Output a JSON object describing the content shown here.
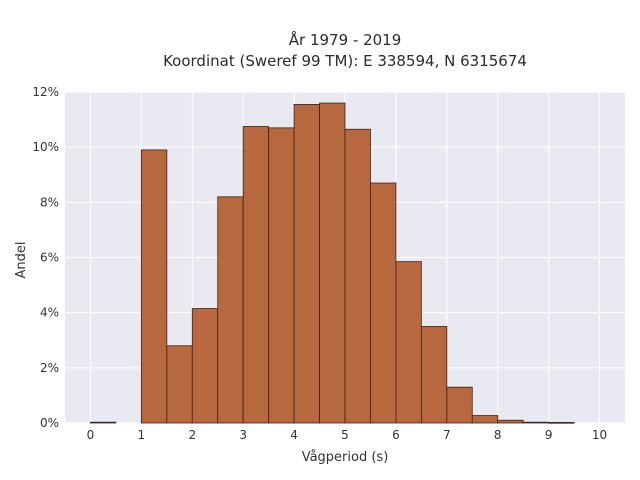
{
  "chart_data": {
    "type": "bar",
    "title_line1": "År 1979 - 2019",
    "title_line2": "Koordinat (Sweref 99 TM): E 338594, N 6315674",
    "xlabel": "Vågperiod (s)",
    "ylabel": "Andel",
    "xlim": [
      -0.5,
      10.5
    ],
    "ylim": [
      0,
      12
    ],
    "x_ticks": [
      0,
      1,
      2,
      3,
      4,
      5,
      6,
      7,
      8,
      9,
      10
    ],
    "y_ticks": [
      0,
      2,
      4,
      6,
      8,
      10,
      12
    ],
    "y_tick_labels": [
      "0%",
      "2%",
      "4%",
      "6%",
      "8%",
      "10%",
      "12%"
    ],
    "bin_width": 0.5,
    "bin_starts": [
      0,
      0.5,
      1,
      1.5,
      2,
      2.5,
      3,
      3.5,
      4,
      4.5,
      5,
      5.5,
      6,
      6.5,
      7,
      7.5,
      8,
      8.5,
      9,
      9.5
    ],
    "values": [
      0.03,
      0,
      9.9,
      2.8,
      4.15,
      8.2,
      10.75,
      10.7,
      11.55,
      11.6,
      10.65,
      8.7,
      5.85,
      3.5,
      1.3,
      0.27,
      0.1,
      0.03,
      0.02,
      0
    ],
    "grid": true,
    "colors": {
      "bar_fill": "#b8683f",
      "bar_edge": "#3a2418",
      "plot_bg": "#e9e9f1",
      "grid": "#ffffff"
    }
  }
}
